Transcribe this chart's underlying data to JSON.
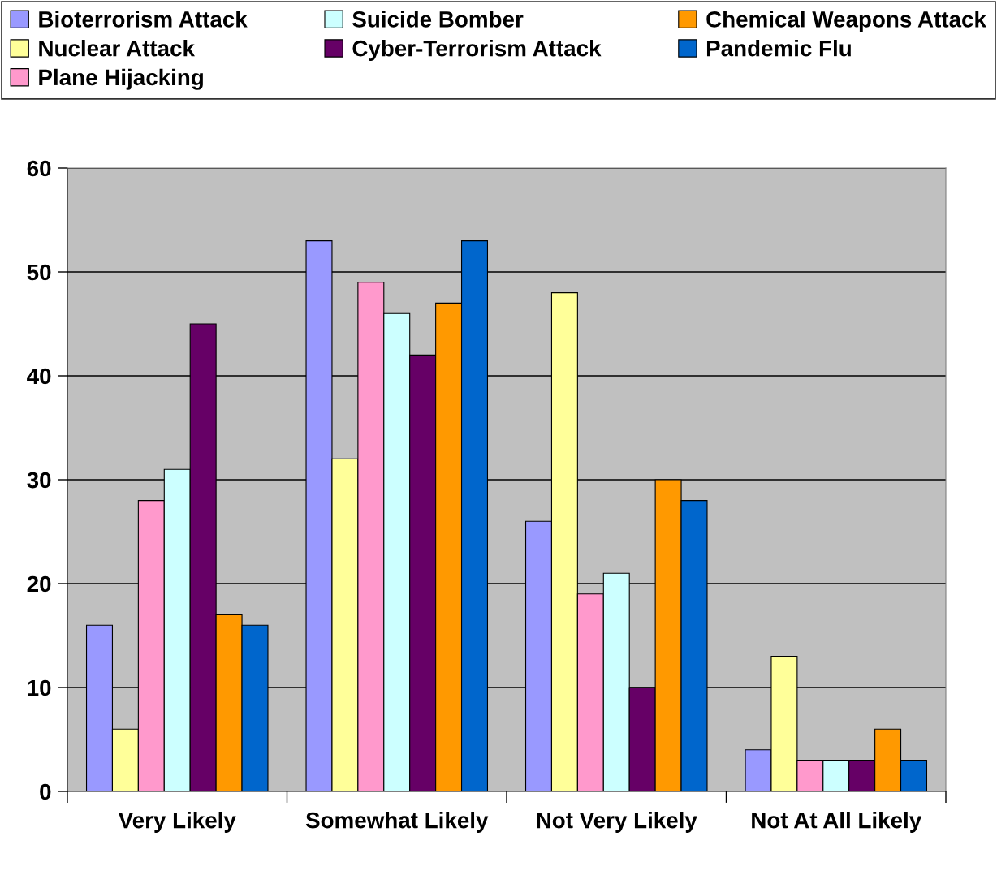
{
  "chart_data": {
    "type": "bar",
    "categories": [
      "Very Likely",
      "Somewhat Likely",
      "Not Very Likely",
      "Not At All Likely"
    ],
    "series": [
      {
        "name": "Bioterrorism Attack",
        "color": "#9999ff",
        "values": [
          16,
          53,
          26,
          4
        ]
      },
      {
        "name": "Nuclear Attack",
        "color": "#ffff99",
        "values": [
          6,
          32,
          48,
          13
        ]
      },
      {
        "name": "Plane Hijacking",
        "color": "#ff99cc",
        "values": [
          28,
          49,
          19,
          3
        ]
      },
      {
        "name": "Suicide Bomber",
        "color": "#ccffff",
        "values": [
          31,
          46,
          21,
          3
        ]
      },
      {
        "name": "Cyber-Terrorism Attack",
        "color": "#660066",
        "values": [
          45,
          42,
          10,
          3
        ]
      },
      {
        "name": "Chemical Weapons Attack",
        "color": "#ff9900",
        "values": [
          17,
          47,
          30,
          6
        ]
      },
      {
        "name": "Pandemic Flu",
        "color": "#0066cc",
        "values": [
          16,
          53,
          28,
          3
        ]
      }
    ],
    "ylim": [
      0,
      60
    ],
    "yticks": [
      0,
      10,
      20,
      30,
      40,
      50,
      60
    ],
    "grid": "y",
    "legend": "top"
  }
}
